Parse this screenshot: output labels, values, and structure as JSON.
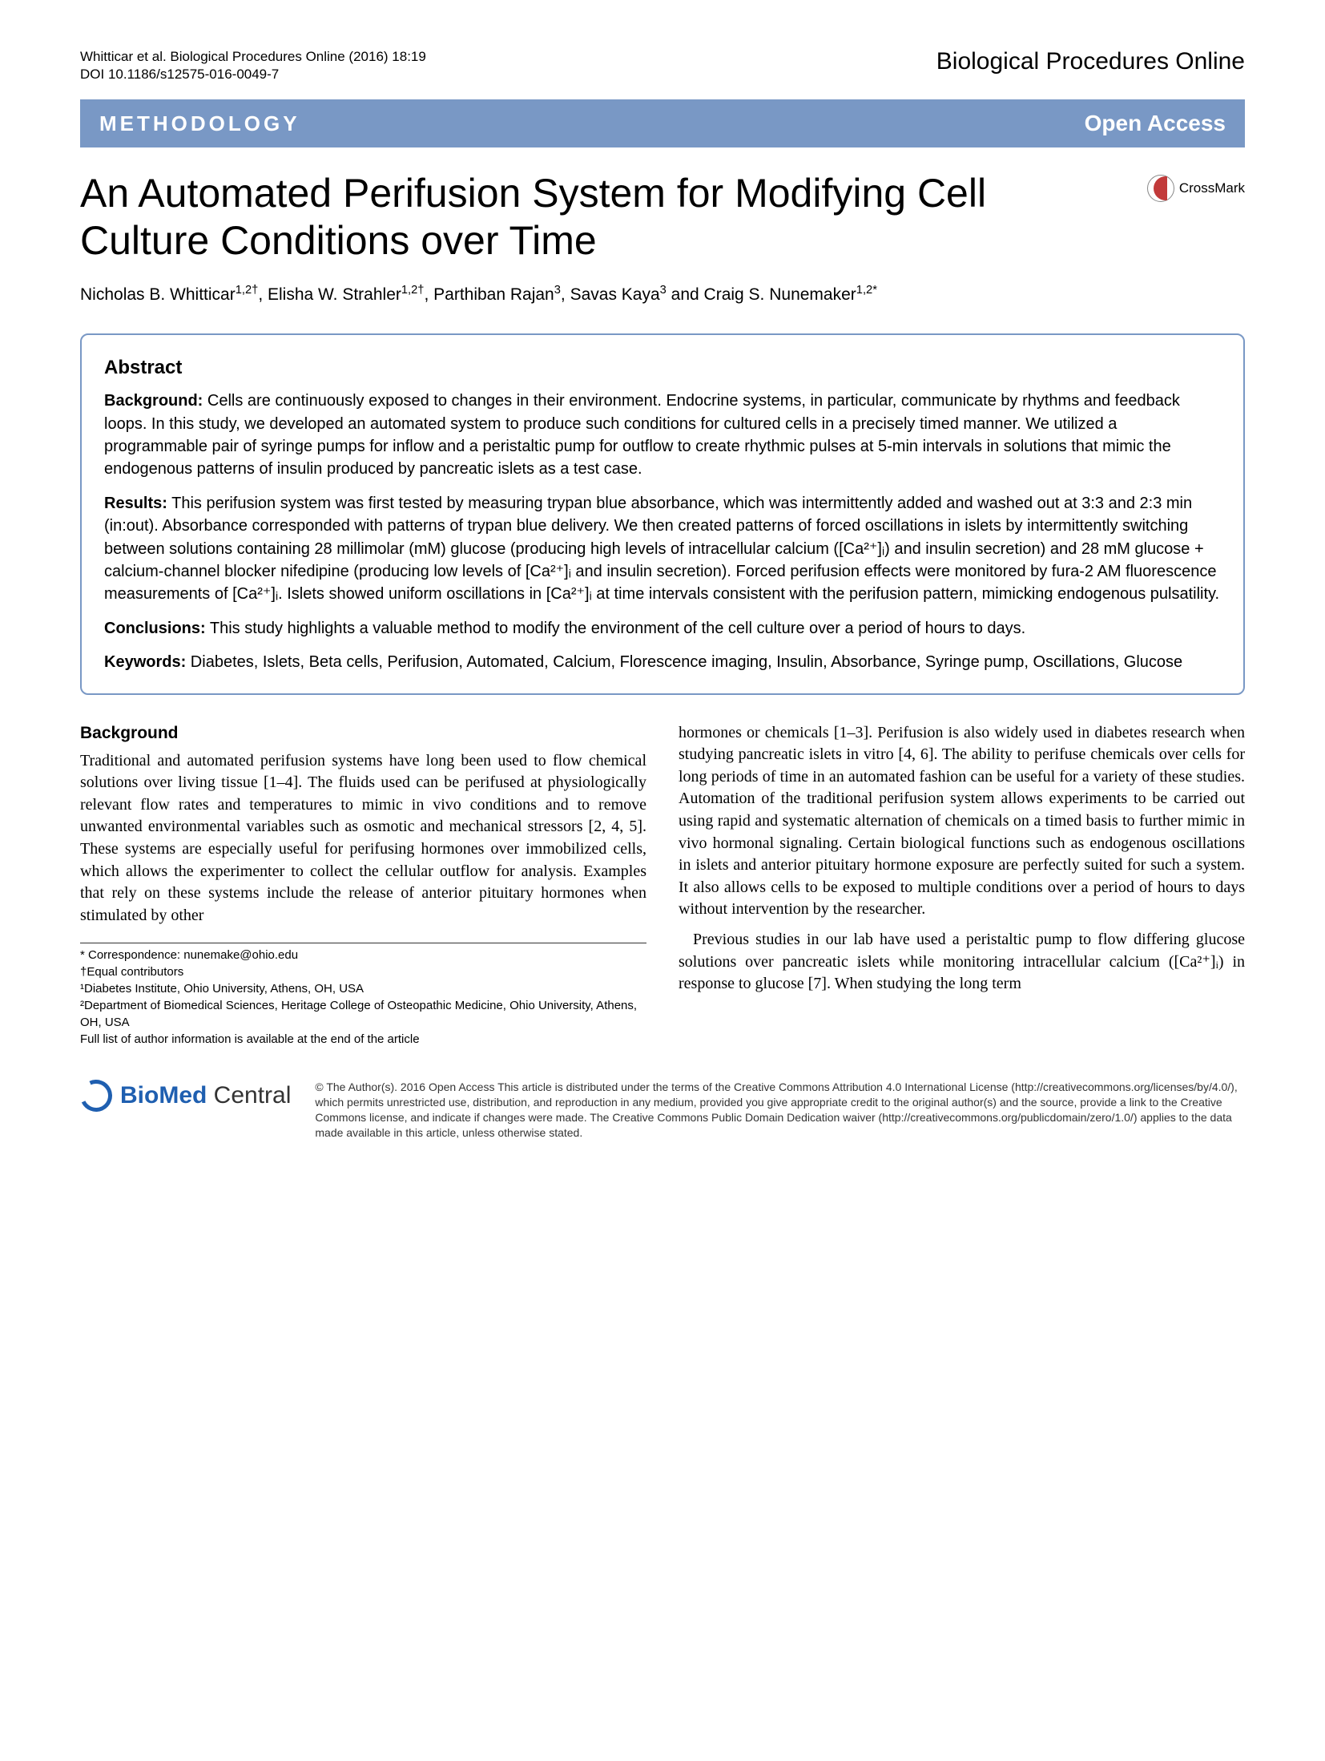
{
  "citation_line1": "Whitticar et al. Biological Procedures Online  (2016) 18:19",
  "citation_line2": "DOI 10.1186/s12575-016-0049-7",
  "journal": "Biological Procedures Online",
  "category": "METHODOLOGY",
  "open_access": "Open Access",
  "crossmark": "CrossMark",
  "title": "An Automated Perifusion System for Modifying Cell Culture Conditions over Time",
  "authors_html": "Nicholas B. Whitticar<sup>1,2†</sup>, Elisha W. Strahler<sup>1,2†</sup>, Parthiban Rajan<sup>3</sup>, Savas Kaya<sup>3</sup> and Craig S. Nunemaker<sup>1,2*</sup>",
  "abstract": {
    "heading": "Abstract",
    "background_label": "Background:",
    "background": " Cells are continuously exposed to changes in their environment. Endocrine systems, in particular, communicate by rhythms and feedback loops. In this study, we developed an automated system to produce such conditions for cultured cells in a precisely timed manner. We utilized a programmable pair of syringe pumps for inflow and a peristaltic pump for outflow to create rhythmic pulses at 5-min intervals in solutions that mimic the endogenous patterns of insulin produced by pancreatic islets as a test case.",
    "results_label": "Results:",
    "results": " This perifusion system was first tested by measuring trypan blue absorbance, which was intermittently added and washed out at 3:3 and 2:3 min (in:out). Absorbance corresponded with patterns of trypan blue delivery. We then created patterns of forced oscillations in islets by intermittently switching between solutions containing 28 millimolar (mM) glucose (producing high levels of intracellular calcium ([Ca²⁺]ᵢ) and insulin secretion) and 28 mM glucose + calcium-channel blocker nifedipine (producing low levels of [Ca²⁺]ᵢ and insulin secretion). Forced perifusion effects were monitored by fura-2 AM fluorescence measurements of [Ca²⁺]ᵢ. Islets showed uniform oscillations in [Ca²⁺]ᵢ at time intervals consistent with the perifusion pattern, mimicking endogenous pulsatility.",
    "conclusions_label": "Conclusions:",
    "conclusions": " This study highlights a valuable method to modify the environment of the cell culture over a period of hours to days.",
    "keywords_label": "Keywords:",
    "keywords": " Diabetes, Islets, Beta cells, Perifusion, Automated, Calcium, Florescence imaging, Insulin, Absorbance, Syringe pump, Oscillations, Glucose"
  },
  "body": {
    "heading": "Background",
    "col1_p1": "Traditional and automated perifusion systems have long been used to flow chemical solutions over living tissue [1–4]. The fluids used can be perifused at physiologically relevant flow rates and temperatures to mimic in vivo conditions and to remove unwanted environmental variables such as osmotic and mechanical stressors [2, 4, 5]. These systems are especially useful for perifusing hormones over immobilized cells, which allows the experimenter to collect the cellular outflow for analysis. Examples that rely on these systems include the release of anterior pituitary hormones when stimulated by other",
    "col2_p1": "hormones or chemicals [1–3]. Perifusion is also widely used in diabetes research when studying pancreatic islets in vitro [4, 6]. The ability to perifuse chemicals over cells for long periods of time in an automated fashion can be useful for a variety of these studies. Automation of the traditional perifusion system allows experiments to be carried out using rapid and systematic alternation of chemicals on a timed basis to further mimic in vivo hormonal signaling. Certain biological functions such as endogenous oscillations in islets and anterior pituitary hormone exposure are perfectly suited for such a system. It also allows cells to be exposed to multiple conditions over a period of hours to days without intervention by the researcher.",
    "col2_p2": "Previous studies in our lab have used a peristaltic pump to flow differing glucose solutions over pancreatic islets while monitoring intracellular calcium ([Ca²⁺]ᵢ) in response to glucose [7]. When studying the long term"
  },
  "footnotes": {
    "l1": "* Correspondence: nunemake@ohio.edu",
    "l2": "†Equal contributors",
    "l3": "¹Diabetes Institute, Ohio University, Athens, OH, USA",
    "l4": "²Department of Biomedical Sciences, Heritage College of Osteopathic Medicine, Ohio University, Athens, OH, USA",
    "l5": "Full list of author information is available at the end of the article"
  },
  "logo": {
    "bio": "BioMed",
    "central": " Central"
  },
  "license": "© The Author(s). 2016 Open Access This article is distributed under the terms of the Creative Commons Attribution 4.0 International License (http://creativecommons.org/licenses/by/4.0/), which permits unrestricted use, distribution, and reproduction in any medium, provided you give appropriate credit to the original author(s) and the source, provide a link to the Creative Commons license, and indicate if changes were made. The Creative Commons Public Domain Dedication waiver (http://creativecommons.org/publicdomain/zero/1.0/) applies to the data made available in this article, unless otherwise stated.",
  "colors": {
    "bar_bg": "#7998c5",
    "border": "#7998c5",
    "logo_blue": "#1f5fb0",
    "crossmark_red": "#c23a3a"
  }
}
